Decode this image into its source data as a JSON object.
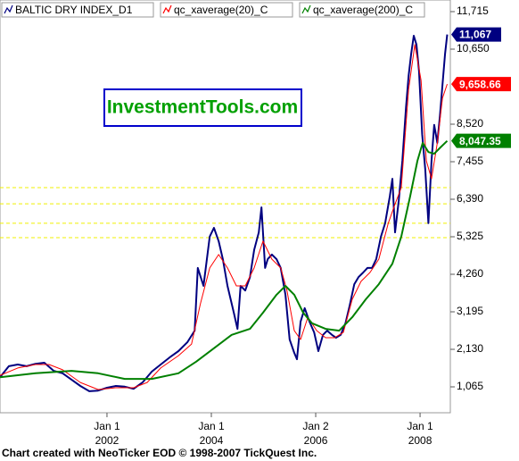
{
  "chart_data": {
    "type": "line",
    "legend": "top-left",
    "series": [
      {
        "name": "BALTIC DRY INDEX_D1",
        "color": "#000080",
        "width": 2,
        "end_label": "11,067",
        "x": [
          1999.95,
          2000.12,
          2000.29,
          2000.46,
          2000.63,
          2000.8,
          2000.98,
          2001.15,
          2001.32,
          2001.49,
          2001.66,
          2001.83,
          2002.0,
          2002.17,
          2002.34,
          2002.51,
          2002.68,
          2002.86,
          2003.03,
          2003.2,
          2003.37,
          2003.54,
          2003.68,
          2003.74,
          2003.85,
          2003.97,
          2004.05,
          2004.14,
          2004.22,
          2004.31,
          2004.43,
          2004.5,
          2004.56,
          2004.65,
          2004.74,
          2004.82,
          2004.91,
          2004.96,
          2005.03,
          2005.08,
          2005.16,
          2005.25,
          2005.33,
          2005.42,
          2005.5,
          2005.59,
          2005.64,
          2005.71,
          2005.79,
          2005.88,
          2005.97,
          2006.05,
          2006.14,
          2006.22,
          2006.31,
          2006.39,
          2006.48,
          2006.57,
          2006.65,
          2006.74,
          2006.82,
          2006.91,
          2006.99,
          2007.08,
          2007.16,
          2007.25,
          2007.33,
          2007.42,
          2007.47,
          2007.52,
          2007.59,
          2007.66,
          2007.73,
          2007.78,
          2007.83,
          2007.88,
          2007.93,
          2007.98,
          2008.04,
          2008.1,
          2008.16,
          2008.22,
          2008.27,
          2008.33,
          2008.38,
          2008.43,
          2008.48,
          2008.52
        ],
        "values": [
          1340,
          1650,
          1700,
          1650,
          1720,
          1750,
          1520,
          1450,
          1270,
          1090,
          940,
          960,
          1040,
          1090,
          1070,
          1010,
          1190,
          1500,
          1700,
          1900,
          2080,
          2330,
          2660,
          4440,
          3930,
          5330,
          5580,
          5200,
          4690,
          3930,
          3170,
          2710,
          3930,
          3800,
          4180,
          4950,
          5450,
          6160,
          4440,
          4690,
          4820,
          4690,
          4440,
          3680,
          2410,
          2030,
          1850,
          2920,
          3300,
          2920,
          2610,
          2080,
          2540,
          2660,
          2540,
          2460,
          2540,
          2870,
          3370,
          3980,
          4180,
          4310,
          4440,
          4440,
          4690,
          5330,
          5710,
          6470,
          6970,
          5450,
          6340,
          7480,
          9000,
          9890,
          10520,
          11030,
          10780,
          10020,
          8240,
          7230,
          5710,
          7480,
          8500,
          7990,
          8750,
          9640,
          10520,
          11067
        ]
      },
      {
        "name": "qc_xaverage(20)_C",
        "color": "#ff0000",
        "width": 1,
        "end_label": "9,658.66",
        "x": [
          1999.95,
          2000.29,
          2000.63,
          2000.89,
          2001.15,
          2001.49,
          2001.83,
          2002.17,
          2002.51,
          2002.77,
          2003.03,
          2003.37,
          2003.62,
          2003.79,
          2003.97,
          2004.14,
          2004.31,
          2004.48,
          2004.65,
          2004.82,
          2004.99,
          2005.16,
          2005.33,
          2005.45,
          2005.59,
          2005.71,
          2005.85,
          2006.02,
          2006.19,
          2006.36,
          2006.53,
          2006.7,
          2006.87,
          2007.04,
          2007.21,
          2007.39,
          2007.51,
          2007.64,
          2007.78,
          2007.9,
          2008.02,
          2008.12,
          2008.22,
          2008.33,
          2008.43,
          2008.52
        ],
        "values": [
          1390,
          1600,
          1700,
          1700,
          1550,
          1190,
          990,
          1040,
          1040,
          1190,
          1600,
          1950,
          2280,
          3420,
          4440,
          4820,
          4440,
          3930,
          3930,
          4440,
          5200,
          4690,
          4440,
          3800,
          2660,
          2410,
          3040,
          2660,
          2460,
          2460,
          2610,
          3550,
          4060,
          4310,
          4690,
          5710,
          6210,
          6720,
          9510,
          10780,
          9760,
          7480,
          6970,
          7990,
          9260,
          9658.66
        ]
      },
      {
        "name": "qc_xaverage(200)_C",
        "color": "#008000",
        "width": 2,
        "end_label": "8,047.35",
        "x": [
          1999.95,
          2000.63,
          2001.32,
          2001.83,
          2002.34,
          2002.86,
          2003.37,
          2003.71,
          2004.05,
          2004.39,
          2004.74,
          2004.99,
          2005.25,
          2005.42,
          2005.59,
          2005.76,
          2005.93,
          2006.19,
          2006.45,
          2006.7,
          2006.96,
          2007.21,
          2007.47,
          2007.64,
          2007.81,
          2007.95,
          2008.05,
          2008.16,
          2008.27,
          2008.39,
          2008.52
        ],
        "values": [
          1340,
          1450,
          1520,
          1450,
          1290,
          1290,
          1450,
          1780,
          2160,
          2540,
          2710,
          3170,
          3680,
          3930,
          3680,
          3170,
          2870,
          2710,
          2660,
          3040,
          3550,
          3980,
          4560,
          5330,
          6470,
          7480,
          7990,
          7730,
          7680,
          7860,
          8047.35
        ]
      }
    ],
    "xlim": [
      1999.95,
      2008.58
    ],
    "xticks": [
      {
        "value": 2002,
        "label": "Jan 1",
        "year": "2002"
      },
      {
        "value": 2004,
        "label": "Jan 1",
        "year": "2004"
      },
      {
        "value": 2006,
        "label": "Jan 2",
        "year": "2006"
      },
      {
        "value": 2008,
        "label": "Jan 1",
        "year": "2008"
      }
    ],
    "ylim": [
      330,
      12045
    ],
    "yticks": [
      {
        "value": 1065,
        "label": "1,065"
      },
      {
        "value": 2130,
        "label": "2,130"
      },
      {
        "value": 3195,
        "label": "3,195"
      },
      {
        "value": 4260,
        "label": "4,260"
      },
      {
        "value": 5325,
        "label": "5,325"
      },
      {
        "value": 6390,
        "label": "6,390"
      },
      {
        "value": 7455,
        "label": "7,455"
      },
      {
        "value": 8520,
        "label": "8,520"
      },
      {
        "value": 10650,
        "label": "10,650"
      },
      {
        "value": 11715,
        "label": "11,715"
      }
    ],
    "reference_lines": {
      "color": "#f0f000",
      "values": [
        6720,
        6260,
        5710,
        5300
      ]
    },
    "watermark": "InvestmentTools.com",
    "footer": "Chart created with NeoTicker EOD © 1998-2007 TickQuest Inc."
  }
}
